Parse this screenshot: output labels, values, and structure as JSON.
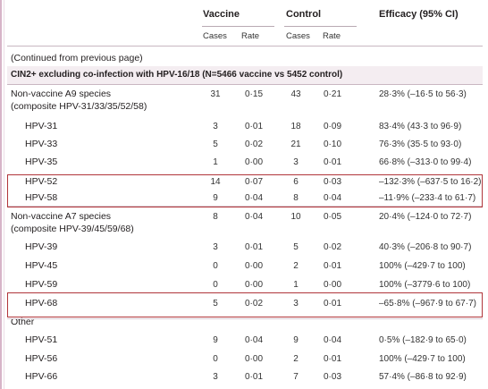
{
  "header": {
    "vaccine": "Vaccine",
    "control": "Control",
    "efficacy": "Efficacy (95% CI)",
    "cases": "Cases",
    "rate": "Rate"
  },
  "continued": "(Continued from previous page)",
  "section_title": "CIN2+ excluding co-infection with HPV-16/18 (N=5466 vaccine vs 5452 control)",
  "rows": [
    {
      "label": "Non-vaccine A9 species",
      "label2": "(composite HPV-31/33/35/52/58)",
      "vc": "31",
      "vr": "0·15",
      "cc": "43",
      "cr": "0·21",
      "eff": "28·3% (–16·5 to 56·3)",
      "indent": false
    },
    {
      "label": "HPV-31",
      "vc": "3",
      "vr": "0·01",
      "cc": "18",
      "cr": "0·09",
      "eff": "83·4% (43·3 to 96·9)",
      "indent": true
    },
    {
      "label": "HPV-33",
      "vc": "5",
      "vr": "0·02",
      "cc": "21",
      "cr": "0·10",
      "eff": "76·3% (35·5 to 93·0)",
      "indent": true
    },
    {
      "label": "HPV-35",
      "vc": "1",
      "vr": "0·00",
      "cc": "3",
      "cr": "0·01",
      "eff": "66·8% (–313·0 to 99·4)",
      "indent": true
    },
    {
      "label": "HPV-52",
      "vc": "14",
      "vr": "0·07",
      "cc": "6",
      "cr": "0·03",
      "eff": "–132·3% (–637·5 to 16·2)",
      "indent": true
    },
    {
      "label": "HPV-58",
      "vc": "9",
      "vr": "0·04",
      "cc": "8",
      "cr": "0·04",
      "eff": "–11·9% (–233·4 to 61·7)",
      "indent": true
    },
    {
      "label": "Non-vaccine A7 species",
      "label2": "(composite HPV-39/45/59/68)",
      "vc": "8",
      "vr": "0·04",
      "cc": "10",
      "cr": "0·05",
      "eff": "20·4% (–124·0 to 72·7)",
      "indent": false
    },
    {
      "label": "HPV-39",
      "vc": "3",
      "vr": "0·01",
      "cc": "5",
      "cr": "0·02",
      "eff": "40·3% (–206·8 to 90·7)",
      "indent": true
    },
    {
      "label": "HPV-45",
      "vc": "0",
      "vr": "0·00",
      "cc": "2",
      "cr": "0·01",
      "eff": "100% (–429·7 to 100)",
      "indent": true
    },
    {
      "label": "HPV-59",
      "vc": "0",
      "vr": "0·00",
      "cc": "1",
      "cr": "0·00",
      "eff": "100% (–3779·6 to 100)",
      "indent": true
    },
    {
      "label": "HPV-68",
      "vc": "5",
      "vr": "0·02",
      "cc": "3",
      "cr": "0·01",
      "eff": "–65·8% (–967·9 to 67·7)",
      "indent": true
    },
    {
      "label": "Other",
      "vc": "",
      "vr": "",
      "cc": "",
      "cr": "",
      "eff": "",
      "indent": false
    },
    {
      "label": "HPV-51",
      "vc": "9",
      "vr": "0·04",
      "cc": "9",
      "cr": "0·04",
      "eff": "0·5% (–182·9 to 65·0)",
      "indent": true
    },
    {
      "label": "HPV-56",
      "vc": "0",
      "vr": "0·00",
      "cc": "2",
      "cr": "0·01",
      "eff": "100% (–429·7 to 100)",
      "indent": true
    },
    {
      "label": "HPV-66",
      "vc": "3",
      "vr": "0·01",
      "cc": "7",
      "cr": "0·03",
      "eff": "57·4% (–86·8 to 92·9)",
      "indent": true
    }
  ],
  "colors": {
    "highlight_border": "#b0353a",
    "rule": "#c9b7c2",
    "left_bar": "#d7b5c8",
    "section_band": "#f4edf1"
  }
}
